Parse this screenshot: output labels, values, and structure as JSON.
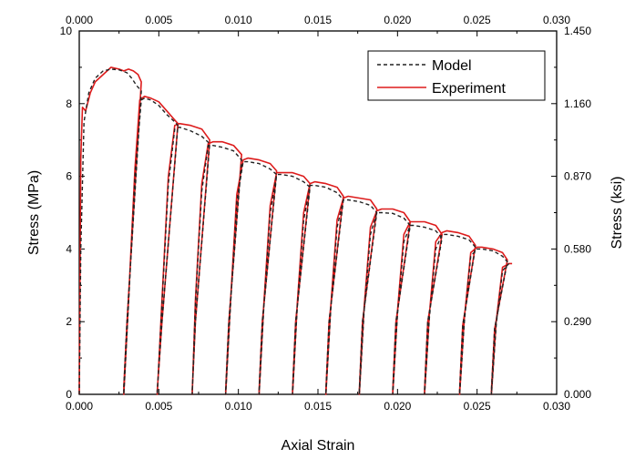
{
  "colors": {
    "model": "#222222",
    "experiment": "#dd1c1c",
    "axis": "#000000"
  },
  "chart_data": {
    "type": "line",
    "title": "",
    "xlabel": "Axial Strain",
    "ylabel": "Stress (MPa)",
    "y2label": "Stress (ksi)",
    "xlim": [
      0.0,
      0.03
    ],
    "ylim": [
      0,
      10
    ],
    "y2lim": [
      0.0,
      1.45
    ],
    "x_ticks": [
      "0.000",
      "0.005",
      "0.010",
      "0.015",
      "0.020",
      "0.025",
      "0.030"
    ],
    "x2_ticks": [
      "0.000",
      "0.005",
      "0.010",
      "0.015",
      "0.020",
      "0.025",
      "0.030"
    ],
    "y_ticks": [
      "0",
      "2",
      "4",
      "6",
      "8",
      "10"
    ],
    "y2_ticks": [
      "0.000",
      "0.290",
      "0.580",
      "0.870",
      "1.160",
      "1.450"
    ],
    "y_tick_values": [
      0,
      2,
      4,
      6,
      8,
      10
    ],
    "y2_tick_values": [
      0.0,
      0.29,
      0.58,
      0.87,
      1.16,
      1.45
    ],
    "legend_position": "top-right",
    "series": [
      {
        "name": "Model",
        "style": "dashed",
        "x": [
          0.0,
          0.0001,
          0.0003,
          0.0006,
          0.001,
          0.0015,
          0.002,
          0.0025,
          0.003,
          0.0033,
          0.0036,
          0.0039,
          0.003,
          0.0028,
          0.0028,
          0.0031,
          0.0035,
          0.0039,
          0.0041,
          0.0045,
          0.005,
          0.0055,
          0.006,
          0.0062,
          0.0052,
          0.0049,
          0.0049,
          0.0052,
          0.0056,
          0.006,
          0.0063,
          0.007,
          0.0077,
          0.0082,
          0.0073,
          0.0071,
          0.0071,
          0.0073,
          0.0077,
          0.0081,
          0.0084,
          0.009,
          0.0097,
          0.0102,
          0.0094,
          0.0092,
          0.0092,
          0.0095,
          0.0099,
          0.0103,
          0.0106,
          0.0113,
          0.012,
          0.0124,
          0.0115,
          0.0113,
          0.0113,
          0.0116,
          0.012,
          0.0124,
          0.0127,
          0.0134,
          0.0141,
          0.0145,
          0.0136,
          0.0134,
          0.0134,
          0.0137,
          0.0141,
          0.0145,
          0.0148,
          0.0155,
          0.0162,
          0.0166,
          0.0157,
          0.0155,
          0.0155,
          0.0158,
          0.0162,
          0.0166,
          0.0169,
          0.0176,
          0.0183,
          0.0187,
          0.0178,
          0.0176,
          0.0176,
          0.0179,
          0.0183,
          0.0187,
          0.019,
          0.0197,
          0.0204,
          0.0208,
          0.0199,
          0.0197,
          0.0197,
          0.02,
          0.0204,
          0.0208,
          0.021,
          0.0217,
          0.0224,
          0.0228,
          0.0219,
          0.0217,
          0.0217,
          0.022,
          0.0224,
          0.0228,
          0.0231,
          0.0238,
          0.0245,
          0.0249,
          0.0241,
          0.0239,
          0.0239,
          0.0242,
          0.0246,
          0.025,
          0.0253,
          0.026,
          0.0266,
          0.0269,
          0.0261,
          0.0259,
          0.0259,
          0.0262,
          0.0266,
          0.027
        ],
        "y": [
          0.0,
          4.0,
          7.5,
          8.3,
          8.7,
          8.9,
          8.95,
          8.93,
          8.85,
          8.7,
          8.5,
          8.35,
          2.0,
          0.2,
          0.0,
          2.5,
          6.0,
          8.1,
          8.15,
          8.1,
          7.95,
          7.7,
          7.5,
          7.4,
          2.0,
          0.1,
          0.0,
          2.5,
          5.8,
          7.3,
          7.35,
          7.25,
          7.1,
          6.9,
          2.0,
          0.1,
          0.0,
          2.5,
          5.6,
          6.85,
          6.85,
          6.8,
          6.7,
          6.45,
          2.0,
          0.1,
          0.0,
          2.4,
          5.3,
          6.4,
          6.4,
          6.35,
          6.2,
          6.05,
          2.0,
          0.1,
          0.0,
          2.4,
          5.0,
          6.05,
          6.05,
          6.0,
          5.85,
          5.7,
          2.0,
          0.1,
          0.0,
          2.4,
          4.8,
          5.75,
          5.75,
          5.7,
          5.55,
          5.35,
          2.0,
          0.1,
          0.0,
          2.3,
          4.6,
          5.35,
          5.35,
          5.3,
          5.2,
          5.0,
          2.0,
          0.1,
          0.0,
          2.3,
          4.4,
          5.0,
          5.0,
          4.98,
          4.85,
          4.65,
          2.0,
          0.1,
          0.0,
          2.2,
          4.2,
          4.65,
          4.65,
          4.6,
          4.5,
          4.3,
          2.0,
          0.1,
          0.0,
          2.1,
          4.0,
          4.4,
          4.4,
          4.35,
          4.25,
          4.05,
          1.9,
          0.1,
          0.0,
          2.0,
          3.8,
          4.0,
          4.0,
          3.95,
          3.8,
          3.65,
          1.8,
          0.1,
          0.0,
          1.9,
          3.4,
          3.6
        ]
      },
      {
        "name": "Experiment",
        "style": "solid",
        "x": [
          0.0,
          0.0001,
          0.0002,
          0.0004,
          0.0007,
          0.001,
          0.0015,
          0.002,
          0.0025,
          0.0028,
          0.0031,
          0.0034,
          0.0037,
          0.0039,
          0.003,
          0.0028,
          0.0028,
          0.0031,
          0.0035,
          0.0038,
          0.0041,
          0.0045,
          0.005,
          0.0055,
          0.006,
          0.0062,
          0.0052,
          0.0049,
          0.0049,
          0.0052,
          0.0056,
          0.006,
          0.0063,
          0.007,
          0.0077,
          0.0082,
          0.0073,
          0.0071,
          0.0071,
          0.0073,
          0.0077,
          0.0081,
          0.0084,
          0.009,
          0.0097,
          0.0102,
          0.0094,
          0.0092,
          0.0092,
          0.0095,
          0.0099,
          0.0103,
          0.0106,
          0.0113,
          0.012,
          0.0124,
          0.0115,
          0.0113,
          0.0113,
          0.0116,
          0.012,
          0.0124,
          0.0127,
          0.0134,
          0.0141,
          0.0145,
          0.0136,
          0.0134,
          0.0134,
          0.0137,
          0.0141,
          0.0145,
          0.0148,
          0.0155,
          0.0162,
          0.0166,
          0.0157,
          0.0155,
          0.0155,
          0.0158,
          0.0162,
          0.0166,
          0.0169,
          0.0176,
          0.0183,
          0.0187,
          0.0178,
          0.0176,
          0.0176,
          0.0179,
          0.0183,
          0.0187,
          0.019,
          0.0197,
          0.0204,
          0.0208,
          0.0199,
          0.0197,
          0.0197,
          0.02,
          0.0204,
          0.0208,
          0.021,
          0.0217,
          0.0224,
          0.0228,
          0.0219,
          0.0217,
          0.0217,
          0.022,
          0.0224,
          0.0228,
          0.0231,
          0.0238,
          0.0245,
          0.0249,
          0.0241,
          0.0239,
          0.0239,
          0.0242,
          0.0246,
          0.025,
          0.0253,
          0.026,
          0.0266,
          0.0269,
          0.0261,
          0.0259,
          0.0259,
          0.0262,
          0.0266,
          0.027,
          0.0272
        ],
        "y": [
          0.0,
          6.5,
          7.9,
          7.8,
          8.3,
          8.6,
          8.8,
          9.0,
          8.95,
          8.9,
          8.95,
          8.9,
          8.8,
          8.6,
          2.0,
          0.2,
          0.0,
          2.6,
          6.2,
          8.1,
          8.2,
          8.15,
          8.05,
          7.8,
          7.55,
          7.45,
          2.0,
          0.1,
          0.0,
          2.6,
          6.0,
          7.4,
          7.45,
          7.4,
          7.3,
          7.0,
          2.0,
          0.1,
          0.0,
          2.6,
          5.8,
          6.9,
          6.95,
          6.95,
          6.85,
          6.6,
          2.0,
          0.1,
          0.0,
          2.5,
          5.5,
          6.45,
          6.5,
          6.45,
          6.35,
          6.15,
          2.0,
          0.1,
          0.0,
          2.5,
          5.2,
          6.1,
          6.1,
          6.1,
          6.0,
          5.8,
          2.0,
          0.1,
          0.0,
          2.5,
          5.0,
          5.8,
          5.85,
          5.8,
          5.7,
          5.45,
          2.0,
          0.1,
          0.0,
          2.4,
          4.8,
          5.4,
          5.45,
          5.4,
          5.35,
          5.1,
          2.0,
          0.1,
          0.0,
          2.4,
          4.6,
          5.05,
          5.1,
          5.1,
          5.0,
          4.75,
          2.0,
          0.1,
          0.0,
          2.3,
          4.4,
          4.75,
          4.75,
          4.75,
          4.65,
          4.4,
          2.0,
          0.1,
          0.0,
          2.2,
          4.2,
          4.45,
          4.5,
          4.45,
          4.35,
          4.1,
          1.9,
          0.1,
          0.0,
          2.1,
          3.9,
          4.05,
          4.05,
          4.0,
          3.9,
          3.7,
          1.8,
          0.1,
          0.0,
          2.0,
          3.5,
          3.6,
          3.6
        ]
      }
    ]
  }
}
